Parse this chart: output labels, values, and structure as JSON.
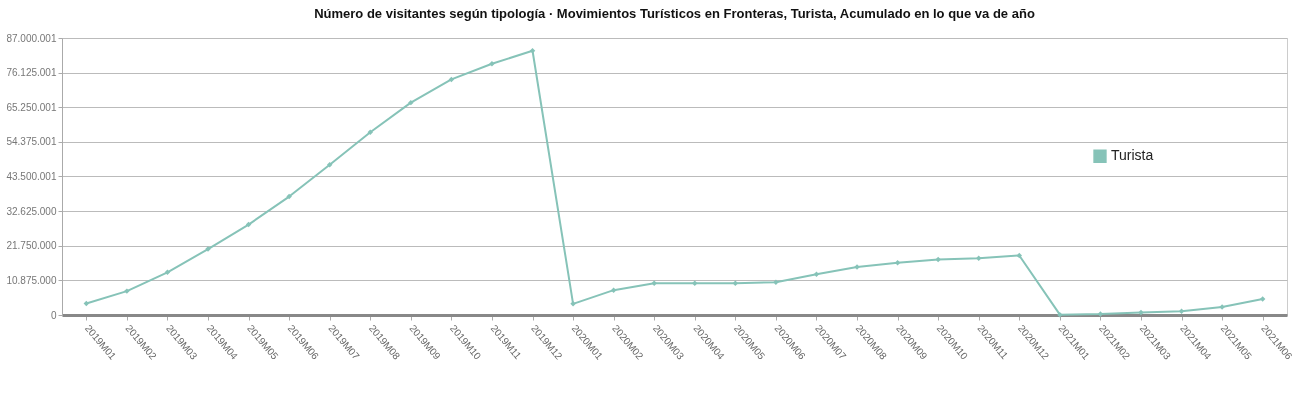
{
  "chart_data": {
    "type": "line",
    "title": "Número de visitantes según tipología · Movimientos Turísticos en Fronteras, Turista, Acumulado en lo que va de año",
    "categories": [
      "2019M01",
      "2019M02",
      "2019M03",
      "2019M04",
      "2019M05",
      "2019M06",
      "2019M07",
      "2019M08",
      "2019M09",
      "2019M10",
      "2019M11",
      "2019M12",
      "2020M01",
      "2020M02",
      "2020M03",
      "2020M04",
      "2020M05",
      "2020M06",
      "2020M07",
      "2020M08",
      "2020M09",
      "2020M10",
      "2020M11",
      "2020M12",
      "2021M01",
      "2021M02",
      "2021M03",
      "2021M04",
      "2021M05",
      "2021M06"
    ],
    "series": [
      {
        "name": "Turista",
        "color": "#86c3b8",
        "values": [
          3600000,
          7500000,
          13400000,
          20700000,
          28400000,
          37200000,
          47200000,
          57400000,
          66700000,
          74000000,
          78900000,
          83000000,
          3500000,
          7800000,
          10000000,
          10000000,
          10000000,
          10300000,
          12800000,
          15100000,
          16400000,
          17400000,
          17800000,
          18700000,
          100000,
          300000,
          800000,
          1200000,
          2500000,
          5000000
        ]
      }
    ],
    "ylim": [
      0,
      87000001
    ],
    "yticks": [
      0,
      {
        "value": 10875000,
        "label": "10.875.000"
      },
      {
        "value": 21750000,
        "label": "21.750.000"
      },
      {
        "value": 32625000,
        "label": "32.625.000"
      },
      {
        "value": 43500001,
        "label": "43.500.001"
      },
      {
        "value": 54375001,
        "label": "54.375.001"
      },
      {
        "value": 65250001,
        "label": "65.250.001"
      },
      {
        "value": 76125001,
        "label": "76.125.001"
      },
      {
        "value": 87000001,
        "label": "87.000.001"
      }
    ],
    "grid": "y",
    "legend": "right",
    "marker": "diamond",
    "line_style": "solid"
  }
}
